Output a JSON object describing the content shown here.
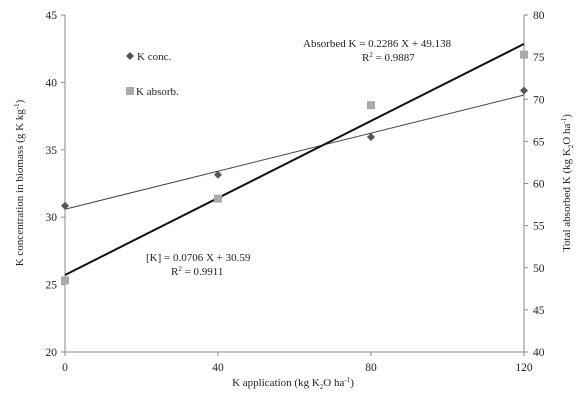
{
  "chart_data": {
    "type": "scatter",
    "xlabel": "K application (kg K",
    "xlabel_sub": "2",
    "xlabel_tail": "O ha",
    "xlabel_sup": "-1",
    "xlabel_end": ")",
    "ylabel_left": "K concentration in biomass (g K kg",
    "ylabel_left_sup": "-1",
    "ylabel_left_end": ")",
    "ylabel_right": "Total absorbed K (kg  K",
    "ylabel_right_sub": "2",
    "ylabel_right_tail": "O ha",
    "ylabel_right_sup": "-1",
    "ylabel_right_end": ")",
    "xlim": [
      0,
      120
    ],
    "ylim_left": [
      20,
      45
    ],
    "ylim_right": [
      40,
      80
    ],
    "x_ticks": [
      "0",
      "40",
      "80",
      "120"
    ],
    "y_left_ticks": [
      "20",
      "25",
      "30",
      "35",
      "40",
      "45"
    ],
    "y_right_ticks": [
      "40",
      "45",
      "50",
      "55",
      "60",
      "65",
      "70",
      "75",
      "80"
    ],
    "grid": false,
    "legend_placement": "upper-left",
    "series": [
      {
        "name": "K conc.",
        "axis": "left",
        "marker": "diamond",
        "color": "#555555",
        "x": [
          0,
          40,
          80,
          120
        ],
        "y": [
          30.85,
          33.15,
          35.95,
          39.4
        ],
        "trendline": {
          "slope": 0.0706,
          "intercept": 30.59,
          "color": "#444444",
          "width": 1
        }
      },
      {
        "name": "K absorb.",
        "axis": "right",
        "marker": "square",
        "color": "#aaaaaa",
        "x": [
          0,
          40,
          80,
          120
        ],
        "y": [
          48.5,
          58.2,
          69.3,
          75.3
        ],
        "trendline": {
          "slope": 0.2286,
          "intercept": 49.138,
          "color": "#111111",
          "width": 2
        }
      }
    ],
    "annotations": {
      "absorbed_eq": "Absorbed K = 0.2286 X + 49.138",
      "absorbed_r2_label": "R",
      "absorbed_r2_sup": "2",
      "absorbed_r2_value": " = 0.9887",
      "conc_eq": "[K] = 0.0706 X + 30.59",
      "conc_r2_label": "R",
      "conc_r2_sup": "2",
      "conc_r2_value": " = 0.9911"
    }
  }
}
